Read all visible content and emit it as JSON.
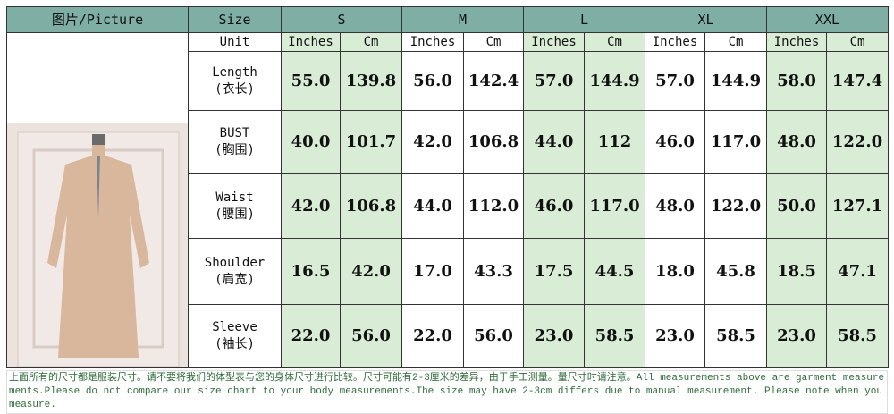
{
  "header": {
    "picture": "图片/Picture",
    "size": "Size",
    "sizes": [
      "S",
      "M",
      "L",
      "XL",
      "XXL"
    ]
  },
  "unit_row": {
    "label": "Unit",
    "inches": "Inches",
    "cm": "Cm"
  },
  "rows": [
    {
      "en": "Length",
      "zh": "(衣长)",
      "values": [
        "55.0",
        "139.8",
        "56.0",
        "142.4",
        "57.0",
        "144.9",
        "57.0",
        "144.9",
        "58.0",
        "147.4"
      ]
    },
    {
      "en": "BUST",
      "zh": "(胸围)",
      "values": [
        "40.0",
        "101.7",
        "42.0",
        "106.8",
        "44.0",
        "112",
        "46.0",
        "117.0",
        "48.0",
        "122.0"
      ]
    },
    {
      "en": "Waist",
      "zh": "(腰围)",
      "values": [
        "42.0",
        "106.8",
        "44.0",
        "112.0",
        "46.0",
        "117.0",
        "48.0",
        "122.0",
        "50.0",
        "127.1"
      ]
    },
    {
      "en": "Shoulder",
      "zh": "(肩宽)",
      "values": [
        "16.5",
        "42.0",
        "17.0",
        "43.3",
        "17.5",
        "44.5",
        "18.0",
        "45.8",
        "18.5",
        "47.1"
      ]
    },
    {
      "en": "Sleeve",
      "zh": "(袖长)",
      "values": [
        "22.0",
        "56.0",
        "22.0",
        "56.0",
        "23.0",
        "58.5",
        "23.0",
        "58.5",
        "23.0",
        "58.5"
      ]
    }
  ],
  "note": "上面所有的尺寸都是服装尺寸。请不要将我们的体型表与您的身体尺寸进行比较。尺寸可能有2-3厘米的差异，由于手工测量。量尺寸时请注意。All measurements above are garment measurements.Please do not compare our size chart to your body measurements.The size may have 2-3cm differs due to manual measurement. Please note when you measure.",
  "colors": {
    "header": "#7eaea4",
    "shade": "#d8ecd6",
    "note_text": "#2f6b3a"
  }
}
